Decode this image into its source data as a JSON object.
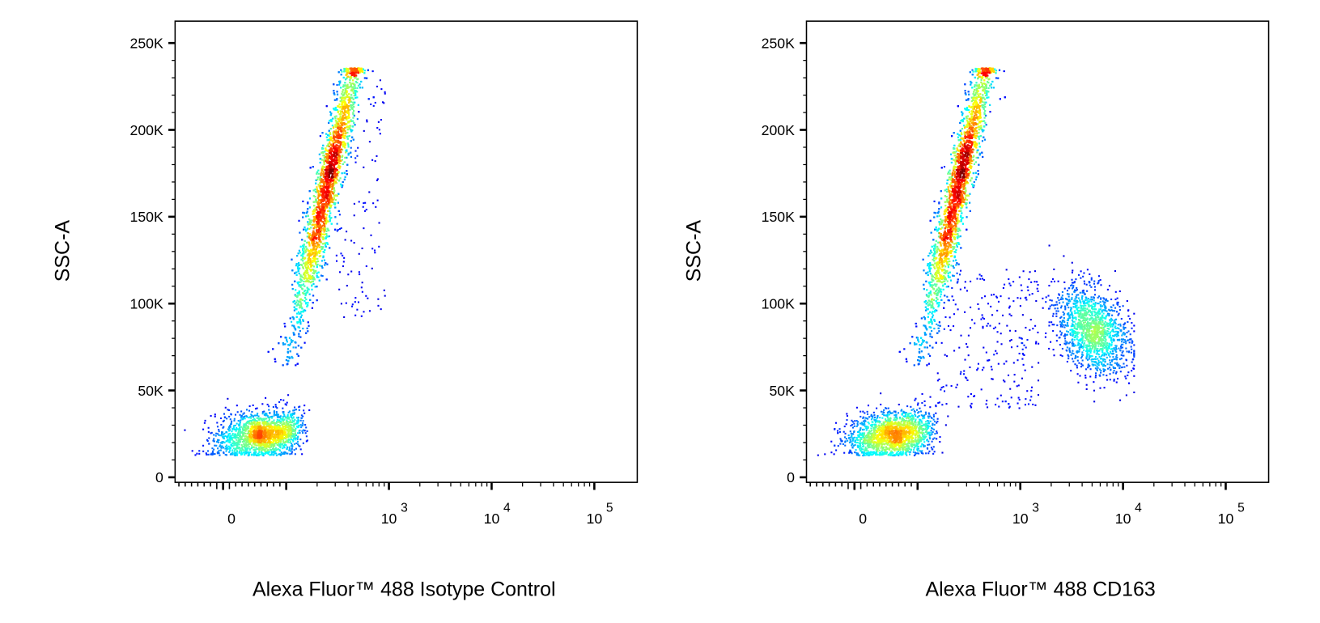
{
  "chart_data": [
    {
      "type": "scatter",
      "style": "density pseudocolor (blue-cyan-green-yellow-red)",
      "xlabel": "Alexa Fluor™ 488 Isotype Control",
      "ylabel": "SSC-A",
      "x_scale": "biexponential",
      "x_ticks": [
        "0",
        "10",
        "3",
        "10",
        "4",
        "10",
        "5"
      ],
      "x_tick_labels": [
        {
          "base": "0",
          "exp": ""
        },
        {
          "base": "10",
          "exp": "3"
        },
        {
          "base": "10",
          "exp": "4"
        },
        {
          "base": "10",
          "exp": "5"
        }
      ],
      "y_ticks": [
        "0",
        "50K",
        "100K",
        "150K",
        "200K",
        "250K"
      ],
      "ylim": [
        0,
        262000
      ],
      "grid": false,
      "populations": [
        {
          "name_shown": false,
          "x_center": 60,
          "x_range": [
            -30,
            180
          ],
          "y_center": 25000,
          "y_range": [
            13000,
            50000
          ],
          "count": 1800
        },
        {
          "name_shown": false,
          "x_range": [
            100,
            450
          ],
          "y_range": [
            65000,
            237000
          ],
          "count": 5200
        },
        {
          "name_shown": false,
          "x_range": [
            300,
            900
          ],
          "y_range": [
            90000,
            230000
          ],
          "count": 120
        }
      ]
    },
    {
      "type": "scatter",
      "style": "density pseudocolor (blue-cyan-green-yellow-red)",
      "xlabel": "Alexa Fluor™ 488 CD163",
      "ylabel": "SSC-A",
      "x_scale": "biexponential",
      "x_tick_labels": [
        {
          "base": "0",
          "exp": ""
        },
        {
          "base": "10",
          "exp": "3"
        },
        {
          "base": "10",
          "exp": "4"
        },
        {
          "base": "10",
          "exp": "5"
        }
      ],
      "y_ticks": [
        "0",
        "50K",
        "100K",
        "150K",
        "200K",
        "250K"
      ],
      "ylim": [
        0,
        262000
      ],
      "grid": false,
      "populations": [
        {
          "name_shown": false,
          "x_center": 60,
          "x_range": [
            -30,
            180
          ],
          "y_center": 25000,
          "y_range": [
            13000,
            50000
          ],
          "count": 1800
        },
        {
          "name_shown": false,
          "x_range": [
            100,
            450
          ],
          "y_range": [
            65000,
            237000
          ],
          "count": 5200
        },
        {
          "name_shown": false,
          "x_center": 5000,
          "x_range": [
            1000,
            12000
          ],
          "y_center": 85000,
          "y_range": [
            45000,
            135000
          ],
          "count": 1500
        },
        {
          "name_shown": false,
          "x_range": [
            150,
            1500
          ],
          "y_range": [
            40000,
            120000
          ],
          "count": 250
        }
      ]
    }
  ]
}
